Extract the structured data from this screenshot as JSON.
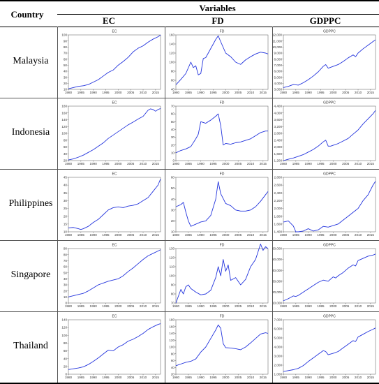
{
  "header": {
    "country": "Country",
    "variables": "Variables",
    "columns": [
      "EC",
      "FD",
      "GDPPC"
    ]
  },
  "chart_data": [
    {
      "type": "line",
      "country": "Malaysia",
      "title": "EC",
      "x": [
        1980,
        1982,
        1984,
        1986,
        1988,
        1990,
        1992,
        1994,
        1996,
        1998,
        2000,
        2002,
        2004,
        2006,
        2008,
        2010,
        2012,
        2014,
        2016,
        2017
      ],
      "values": [
        11,
        13,
        15,
        16,
        18,
        22,
        26,
        32,
        38,
        42,
        50,
        56,
        63,
        72,
        78,
        82,
        88,
        93,
        97,
        100
      ],
      "ylim": [
        10,
        100
      ],
      "yticks": [
        10,
        20,
        30,
        40,
        50,
        60,
        70,
        80,
        90,
        100
      ],
      "xticks": [
        1980,
        1985,
        1990,
        1995,
        2000,
        2005,
        2010,
        2015
      ]
    },
    {
      "type": "line",
      "country": "Malaysia",
      "title": "FD",
      "x": [
        1980,
        1982,
        1984,
        1986,
        1987,
        1988,
        1989,
        1990,
        1991,
        1992,
        1994,
        1996,
        1997,
        1998,
        2000,
        2002,
        2004,
        2006,
        2008,
        2010,
        2012,
        2014,
        2016,
        2017
      ],
      "values": [
        50,
        62,
        75,
        100,
        88,
        92,
        72,
        75,
        108,
        110,
        130,
        150,
        158,
        145,
        120,
        112,
        100,
        95,
        105,
        112,
        118,
        122,
        120,
        118
      ],
      "ylim": [
        40,
        160
      ],
      "yticks": [
        40,
        60,
        80,
        100,
        120,
        140,
        160
      ],
      "xticks": [
        1980,
        1985,
        1990,
        1995,
        2000,
        2005,
        2010,
        2015
      ]
    },
    {
      "type": "line",
      "country": "Malaysia",
      "title": "GDPPC",
      "x": [
        1980,
        1982,
        1984,
        1986,
        1988,
        1990,
        1992,
        1994,
        1996,
        1997,
        1998,
        2000,
        2002,
        2004,
        2006,
        2008,
        2009,
        2010,
        2012,
        2014,
        2016,
        2017
      ],
      "values": [
        3300,
        3500,
        3800,
        3700,
        4100,
        4600,
        5200,
        5900,
        6800,
        7100,
        6500,
        6800,
        7100,
        7600,
        8200,
        8700,
        8400,
        9000,
        9700,
        10300,
        10900,
        11200
      ],
      "ylim": [
        3000,
        12000
      ],
      "yticks": [
        3000,
        4000,
        5000,
        6000,
        7000,
        8000,
        9000,
        10000,
        11000,
        12000
      ],
      "xticks": [
        1980,
        1985,
        1990,
        1995,
        2000,
        2005,
        2010,
        2015
      ]
    },
    {
      "type": "line",
      "country": "Indonesia",
      "title": "EC",
      "x": [
        1980,
        1982,
        1984,
        1986,
        1988,
        1990,
        1992,
        1994,
        1996,
        1998,
        2000,
        2002,
        2004,
        2006,
        2008,
        2010,
        2012,
        2013,
        2014,
        2015,
        2016,
        2017
      ],
      "values": [
        22,
        25,
        30,
        36,
        44,
        52,
        62,
        72,
        85,
        95,
        105,
        115,
        125,
        133,
        142,
        150,
        168,
        172,
        170,
        165,
        170,
        173
      ],
      "ylim": [
        20,
        180
      ],
      "yticks": [
        20,
        40,
        60,
        80,
        100,
        120,
        140,
        160,
        180
      ],
      "xticks": [
        1980,
        1985,
        1990,
        1995,
        2000,
        2005,
        2010,
        2015
      ]
    },
    {
      "type": "line",
      "country": "Indonesia",
      "title": "FD",
      "x": [
        1980,
        1982,
        1984,
        1986,
        1988,
        1989,
        1990,
        1992,
        1994,
        1996,
        1997,
        1998,
        1999,
        2000,
        2002,
        2004,
        2006,
        2008,
        2010,
        2012,
        2014,
        2016,
        2017
      ],
      "values": [
        10,
        13,
        15,
        18,
        28,
        34,
        50,
        48,
        52,
        57,
        60,
        45,
        20,
        22,
        21,
        23,
        24,
        26,
        28,
        32,
        36,
        38,
        38
      ],
      "ylim": [
        0,
        70
      ],
      "yticks": [
        0,
        10,
        20,
        30,
        40,
        50,
        60,
        70
      ],
      "xticks": [
        1980,
        1985,
        1990,
        1995,
        2000,
        2005,
        2010,
        2015
      ]
    },
    {
      "type": "line",
      "country": "Indonesia",
      "title": "GDPPC",
      "x": [
        1980,
        1982,
        1984,
        1986,
        1988,
        1990,
        1992,
        1994,
        1996,
        1997,
        1998,
        1999,
        2000,
        2002,
        2004,
        2006,
        2008,
        2010,
        2012,
        2014,
        2016,
        2017
      ],
      "values": [
        1200,
        1280,
        1350,
        1450,
        1550,
        1700,
        1850,
        2050,
        2300,
        2400,
        2050,
        2050,
        2100,
        2200,
        2350,
        2500,
        2750,
        3000,
        3350,
        3650,
        3950,
        4150
      ],
      "ylim": [
        1200,
        4400
      ],
      "yticks": [
        1200,
        1600,
        2000,
        2400,
        2800,
        3200,
        3600,
        4000,
        4400
      ],
      "xticks": [
        1980,
        1985,
        1990,
        1995,
        2000,
        2005,
        2010,
        2015
      ]
    },
    {
      "type": "line",
      "country": "Philippines",
      "title": "EC",
      "x": [
        1980,
        1982,
        1984,
        1985,
        1986,
        1988,
        1990,
        1992,
        1994,
        1996,
        1998,
        2000,
        2002,
        2004,
        2006,
        2008,
        2010,
        2012,
        2014,
        2016,
        2017
      ],
      "values": [
        12.5,
        12.8,
        12,
        11.5,
        12,
        13.5,
        16,
        18,
        21,
        24,
        25.5,
        26,
        25.5,
        26.5,
        27,
        28,
        30,
        32,
        36,
        40,
        44
      ],
      "ylim": [
        10,
        45
      ],
      "yticks": [
        10,
        15,
        20,
        25,
        30,
        35,
        40,
        45
      ],
      "xticks": [
        1980,
        1985,
        1990,
        1995,
        2000,
        2005,
        2010,
        2015
      ]
    },
    {
      "type": "line",
      "country": "Philippines",
      "title": "FD",
      "x": [
        1980,
        1982,
        1983,
        1984,
        1985,
        1986,
        1988,
        1990,
        1992,
        1994,
        1996,
        1997,
        1998,
        2000,
        2002,
        2004,
        2006,
        2008,
        2010,
        2012,
        2014,
        2016,
        2017
      ],
      "values": [
        33,
        35,
        37,
        28,
        20,
        15,
        17,
        19,
        20,
        25,
        40,
        56,
        45,
        36,
        34,
        30,
        29,
        29,
        30,
        33,
        38,
        44,
        47
      ],
      "ylim": [
        10,
        60
      ],
      "yticks": [
        10,
        20,
        30,
        40,
        50,
        60
      ],
      "xticks": [
        1980,
        1985,
        1990,
        1995,
        2000,
        2005,
        2010,
        2015
      ]
    },
    {
      "type": "line",
      "country": "Philippines",
      "title": "GDPPC",
      "x": [
        1980,
        1982,
        1984,
        1985,
        1986,
        1988,
        1990,
        1992,
        1994,
        1996,
        1998,
        2000,
        2002,
        2004,
        2006,
        2008,
        2010,
        2012,
        2014,
        2016,
        2017
      ],
      "values": [
        1650,
        1680,
        1550,
        1400,
        1400,
        1420,
        1480,
        1420,
        1450,
        1540,
        1520,
        1560,
        1600,
        1700,
        1800,
        1900,
        2000,
        2200,
        2350,
        2600,
        2700
      ],
      "ylim": [
        1400,
        2800
      ],
      "yticks": [
        1400,
        1600,
        1800,
        2000,
        2200,
        2400,
        2600,
        2800
      ],
      "xticks": [
        1980,
        1985,
        1990,
        1995,
        2000,
        2005,
        2010,
        2015
      ]
    },
    {
      "type": "line",
      "country": "Singapore",
      "title": "EC",
      "x": [
        1980,
        1982,
        1984,
        1986,
        1988,
        1990,
        1992,
        1994,
        1996,
        1998,
        2000,
        2002,
        2004,
        2006,
        2008,
        2010,
        2012,
        2014,
        2016,
        2017
      ],
      "values": [
        10,
        12,
        14,
        16,
        20,
        25,
        30,
        33,
        36,
        38,
        40,
        45,
        52,
        58,
        65,
        72,
        78,
        82,
        86,
        88
      ],
      "ylim": [
        0,
        90
      ],
      "yticks": [
        0,
        10,
        20,
        30,
        40,
        50,
        60,
        70,
        80,
        90
      ],
      "xticks": [
        1980,
        1985,
        1990,
        1995,
        2000,
        2005,
        2010,
        2015
      ]
    },
    {
      "type": "line",
      "country": "Singapore",
      "title": "FD",
      "x": [
        1980,
        1982,
        1983,
        1984,
        1985,
        1986,
        1988,
        1990,
        1992,
        1994,
        1996,
        1997,
        1998,
        1999,
        2000,
        2001,
        2002,
        2004,
        2006,
        2008,
        2010,
        2012,
        2014,
        2015,
        2016,
        2017
      ],
      "values": [
        70,
        85,
        80,
        88,
        90,
        86,
        82,
        79,
        80,
        84,
        98,
        110,
        100,
        118,
        105,
        112,
        95,
        98,
        90,
        96,
        110,
        118,
        135,
        128,
        132,
        130
      ],
      "ylim": [
        70,
        130
      ],
      "yticks": [
        70,
        80,
        90,
        100,
        110,
        120,
        130
      ],
      "xticks": [
        1980,
        1985,
        1990,
        1995,
        2000,
        2005,
        2010,
        2015
      ]
    },
    {
      "type": "line",
      "country": "Singapore",
      "title": "GDPPC",
      "x": [
        1980,
        1982,
        1984,
        1985,
        1986,
        1988,
        1990,
        1992,
        1994,
        1996,
        1998,
        2000,
        2001,
        2002,
        2004,
        2006,
        2008,
        2009,
        2010,
        2012,
        2014,
        2016,
        2017
      ],
      "values": [
        12000,
        14000,
        16500,
        16000,
        17000,
        20000,
        23000,
        26000,
        29000,
        31000,
        30000,
        34000,
        33000,
        35000,
        38000,
        42000,
        45000,
        44000,
        49000,
        51000,
        53000,
        54000,
        55000
      ],
      "ylim": [
        10000,
        60000
      ],
      "yticks": [
        10000,
        20000,
        30000,
        40000,
        50000,
        60000
      ],
      "xticks": [
        1980,
        1985,
        1990,
        1995,
        2000,
        2005,
        2010,
        2015
      ]
    },
    {
      "type": "line",
      "country": "Thailand",
      "title": "EC",
      "x": [
        1980,
        1982,
        1984,
        1986,
        1988,
        1990,
        1992,
        1994,
        1996,
        1998,
        2000,
        2002,
        2004,
        2006,
        2008,
        2010,
        2012,
        2014,
        2016,
        2017
      ],
      "values": [
        12,
        14,
        16,
        19,
        25,
        33,
        42,
        52,
        62,
        60,
        70,
        76,
        85,
        90,
        97,
        105,
        115,
        122,
        128,
        130
      ],
      "ylim": [
        0,
        140
      ],
      "yticks": [
        0,
        20,
        40,
        60,
        80,
        100,
        120,
        140
      ],
      "xticks": [
        1980,
        1985,
        1990,
        1995,
        2000,
        2005,
        2010,
        2015
      ]
    },
    {
      "type": "line",
      "country": "Thailand",
      "title": "FD",
      "x": [
        1980,
        1982,
        1984,
        1986,
        1988,
        1990,
        1992,
        1994,
        1996,
        1997,
        1998,
        1999,
        2000,
        2002,
        2004,
        2006,
        2008,
        2010,
        2012,
        2014,
        2016,
        2017
      ],
      "values": [
        45,
        50,
        55,
        58,
        65,
        85,
        100,
        125,
        150,
        165,
        155,
        110,
        98,
        97,
        95,
        92,
        100,
        112,
        125,
        138,
        142,
        140
      ],
      "ylim": [
        20,
        180
      ],
      "yticks": [
        20,
        40,
        60,
        80,
        100,
        120,
        140,
        160,
        180
      ],
      "xticks": [
        1980,
        1985,
        1990,
        1995,
        2000,
        2005,
        2010,
        2015
      ]
    },
    {
      "type": "line",
      "country": "Thailand",
      "title": "GDPPC",
      "x": [
        1980,
        1982,
        1984,
        1986,
        1988,
        1990,
        1992,
        1994,
        1996,
        1997,
        1998,
        2000,
        2002,
        2004,
        2006,
        2008,
        2009,
        2010,
        2012,
        2014,
        2016,
        2017
      ],
      "values": [
        1300,
        1400,
        1500,
        1650,
        1950,
        2400,
        2800,
        3200,
        3600,
        3500,
        3150,
        3300,
        3500,
        3900,
        4300,
        4700,
        4600,
        5100,
        5400,
        5700,
        5950,
        6100
      ],
      "ylim": [
        1000,
        7000
      ],
      "yticks": [
        1000,
        2000,
        3000,
        4000,
        5000,
        6000,
        7000
      ],
      "xticks": [
        1980,
        1985,
        1990,
        1995,
        2000,
        2005,
        2010,
        2015
      ]
    }
  ]
}
